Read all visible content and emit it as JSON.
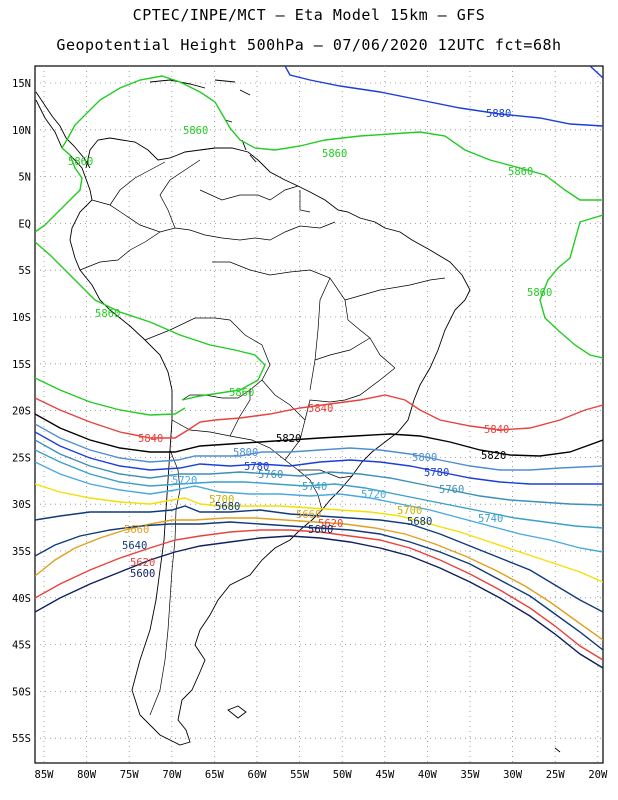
{
  "title_line1": "CPTEC/INPE/MCT –  Eta Model 15km – GFS",
  "title_line2": "Geopotential Height 500hPa – 07/06/2020 12UTC fct=68h",
  "lat_ticks": [
    "15N",
    "10N",
    "5N",
    "EQ",
    "5S",
    "10S",
    "15S",
    "20S",
    "25S",
    "30S",
    "35S",
    "40S",
    "45S",
    "50S",
    "55S"
  ],
  "lon_ticks": [
    "85W",
    "80W",
    "75W",
    "70W",
    "65W",
    "60W",
    "55W",
    "50W",
    "45W",
    "40W",
    "35W",
    "30W",
    "25W",
    "20W"
  ],
  "contours": [
    {
      "level": "5880",
      "color": "#1a3fd9"
    },
    {
      "level": "5860",
      "color": "#22cc22"
    },
    {
      "level": "5840",
      "color": "#e8423c"
    },
    {
      "level": "5820",
      "color": "#000000"
    },
    {
      "level": "5800",
      "color": "#4f8fd0"
    },
    {
      "level": "5780",
      "color": "#1a3fd9"
    },
    {
      "level": "5760",
      "color": "#3b8fb8"
    },
    {
      "level": "5740",
      "color": "#3aa0c8"
    },
    {
      "level": "5720",
      "color": "#4aa8e0"
    },
    {
      "level": "5700",
      "color": "#f2e000"
    },
    {
      "level": "5680",
      "color": "#0f3a7a"
    },
    {
      "level": "5660",
      "color": "#e0a020"
    },
    {
      "level": "5640",
      "color": "#0f3a7a"
    },
    {
      "level": "5620",
      "color": "#e8423c"
    },
    {
      "level": "5600",
      "color": "#0f1f60"
    }
  ],
  "labels": [
    {
      "text": "5880",
      "color": "#1a3fd9"
    },
    {
      "text": "5860",
      "color": "#22cc22"
    },
    {
      "text": "5860",
      "color": "#22cc22"
    },
    {
      "text": "5860",
      "color": "#22cc22"
    },
    {
      "text": "5860",
      "color": "#22cc22"
    },
    {
      "text": "5860",
      "color": "#22cc22"
    },
    {
      "text": "5860",
      "color": "#22cc22"
    },
    {
      "text": "5860",
      "color": "#22cc22"
    },
    {
      "text": "5840",
      "color": "#e8423c"
    },
    {
      "text": "5840",
      "color": "#e8423c"
    },
    {
      "text": "5840",
      "color": "#e8423c"
    },
    {
      "text": "5820",
      "color": "#000000"
    },
    {
      "text": "5820",
      "color": "#000000"
    },
    {
      "text": "5800",
      "color": "#4f8fd0"
    },
    {
      "text": "5800",
      "color": "#4f8fd0"
    },
    {
      "text": "5780",
      "color": "#1a3fd9"
    },
    {
      "text": "5780",
      "color": "#1a3fd9"
    },
    {
      "text": "5760",
      "color": "#3b8fb8"
    },
    {
      "text": "5760",
      "color": "#3b8fb8"
    },
    {
      "text": "5740",
      "color": "#3aa0c8"
    },
    {
      "text": "5740",
      "color": "#3aa0c8"
    },
    {
      "text": "5720",
      "color": "#4aa8e0"
    },
    {
      "text": "5720",
      "color": "#4aa8e0"
    },
    {
      "text": "5700",
      "color": "#c8b400"
    },
    {
      "text": "5700",
      "color": "#c8b400"
    },
    {
      "text": "5680",
      "color": "#0f3a7a"
    },
    {
      "text": "5680",
      "color": "#0f3a7a"
    },
    {
      "text": "5660",
      "color": "#e0a020"
    },
    {
      "text": "5660",
      "color": "#e0a020"
    },
    {
      "text": "5640",
      "color": "#0f3a7a"
    },
    {
      "text": "5620",
      "color": "#e8423c"
    },
    {
      "text": "5620",
      "color": "#e8423c"
    },
    {
      "text": "5600",
      "color": "#0f1f60"
    },
    {
      "text": "5600",
      "color": "#0f1f60"
    }
  ]
}
